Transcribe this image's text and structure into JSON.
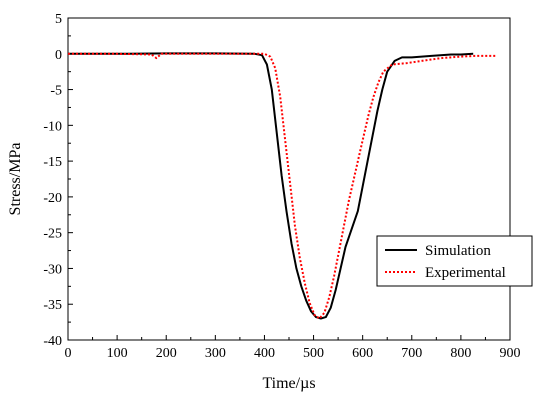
{
  "chart_data": {
    "type": "line",
    "title": "",
    "xlabel": "Time/µs",
    "ylabel": "Stress/MPa",
    "xlim": [
      0,
      900
    ],
    "ylim": [
      -40,
      5
    ],
    "xticks": [
      0,
      100,
      200,
      300,
      400,
      500,
      600,
      700,
      800,
      900
    ],
    "yticks": [
      5,
      0,
      -5,
      -10,
      -15,
      -20,
      -25,
      -30,
      -35,
      -40
    ],
    "grid": false,
    "legend_position": "bottom-right",
    "series": [
      {
        "name": "Simulation",
        "color": "#000000",
        "style": "solid",
        "points": [
          [
            0,
            0
          ],
          [
            100,
            0
          ],
          [
            200,
            0.05
          ],
          [
            300,
            0.05
          ],
          [
            380,
            0
          ],
          [
            395,
            -0.2
          ],
          [
            405,
            -1.5
          ],
          [
            415,
            -5
          ],
          [
            425,
            -11
          ],
          [
            435,
            -17
          ],
          [
            445,
            -22
          ],
          [
            455,
            -26.5
          ],
          [
            465,
            -30
          ],
          [
            475,
            -32.5
          ],
          [
            485,
            -34.5
          ],
          [
            495,
            -36
          ],
          [
            505,
            -36.8
          ],
          [
            515,
            -37
          ],
          [
            525,
            -36.8
          ],
          [
            535,
            -35.5
          ],
          [
            545,
            -33
          ],
          [
            555,
            -30
          ],
          [
            565,
            -27
          ],
          [
            575,
            -25
          ],
          [
            590,
            -22
          ],
          [
            600,
            -18.5
          ],
          [
            610,
            -15
          ],
          [
            620,
            -11.5
          ],
          [
            630,
            -8
          ],
          [
            640,
            -5
          ],
          [
            650,
            -2.5
          ],
          [
            665,
            -1
          ],
          [
            680,
            -0.5
          ],
          [
            700,
            -0.5
          ],
          [
            740,
            -0.3
          ],
          [
            780,
            -0.1
          ],
          [
            800,
            -0.1
          ],
          [
            825,
            0
          ]
        ]
      },
      {
        "name": "Experimental",
        "color": "#ff0000",
        "style": "dotted",
        "points": [
          [
            0,
            0
          ],
          [
            100,
            0
          ],
          [
            170,
            -0.1
          ],
          [
            180,
            -0.6
          ],
          [
            190,
            0
          ],
          [
            300,
            0
          ],
          [
            400,
            0
          ],
          [
            412,
            -0.4
          ],
          [
            422,
            -2
          ],
          [
            432,
            -6
          ],
          [
            442,
            -12
          ],
          [
            452,
            -18
          ],
          [
            462,
            -24
          ],
          [
            472,
            -28.5
          ],
          [
            482,
            -32
          ],
          [
            492,
            -34.8
          ],
          [
            502,
            -36.5
          ],
          [
            512,
            -37
          ],
          [
            522,
            -36.2
          ],
          [
            532,
            -34
          ],
          [
            542,
            -31
          ],
          [
            552,
            -27.5
          ],
          [
            562,
            -24
          ],
          [
            572,
            -20.5
          ],
          [
            582,
            -17.5
          ],
          [
            592,
            -14.5
          ],
          [
            602,
            -11.5
          ],
          [
            612,
            -8.5
          ],
          [
            622,
            -6
          ],
          [
            632,
            -4
          ],
          [
            642,
            -2.5
          ],
          [
            660,
            -1.5
          ],
          [
            690,
            -1.3
          ],
          [
            720,
            -1
          ],
          [
            760,
            -0.6
          ],
          [
            800,
            -0.4
          ],
          [
            830,
            -0.3
          ],
          [
            870,
            -0.3
          ]
        ]
      }
    ]
  }
}
